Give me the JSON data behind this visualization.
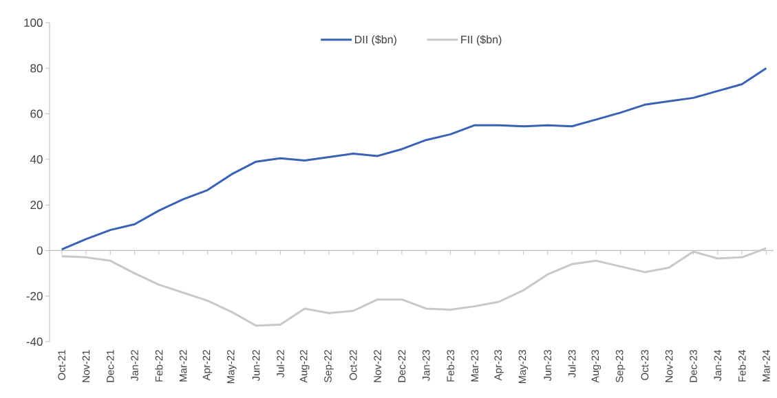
{
  "chart_data": {
    "type": "line",
    "categories": [
      "Oct-21",
      "Nov-21",
      "Dec-21",
      "Jan-22",
      "Feb-22",
      "Mar-22",
      "Apr-22",
      "May-22",
      "Jun-22",
      "Jul-22",
      "Aug-22",
      "Sep-22",
      "Oct-22",
      "Nov-22",
      "Dec-22",
      "Jan-23",
      "Feb-23",
      "Mar-23",
      "Apr-23",
      "May-23",
      "Jun-23",
      "Jul-23",
      "Aug-23",
      "Sep-23",
      "Oct-23",
      "Nov-23",
      "Dec-23",
      "Jan-24",
      "Feb-24",
      "Mar-24"
    ],
    "series": [
      {
        "name": "DII ($bn)",
        "color": "#3a62b4",
        "values": [
          0.5,
          5,
          9,
          11.5,
          17.5,
          22.5,
          26.5,
          33.5,
          39,
          40.5,
          39.5,
          41,
          42.5,
          41.5,
          44.5,
          48.5,
          51,
          55,
          55,
          54.5,
          55,
          54.5,
          57.5,
          60.5,
          64,
          65.5,
          67,
          70,
          73,
          80
        ]
      },
      {
        "name": "FII ($bn)",
        "color": "#c8c8c8",
        "values": [
          -2.5,
          -3,
          -4.5,
          -10,
          -15,
          -18.5,
          -22,
          -27,
          -33,
          -32.5,
          -25.5,
          -27.5,
          -26.5,
          -21.5,
          -21.5,
          -25.5,
          -26,
          -24.5,
          -22.5,
          -17.5,
          -10.5,
          -6,
          -4.5,
          -7,
          -9.5,
          -7.5,
          -0.5,
          -3.5,
          -3,
          1
        ]
      }
    ],
    "ylim": [
      -40,
      100
    ],
    "yticks": [
      -40,
      -20,
      0,
      20,
      40,
      60,
      80,
      100
    ],
    "legend": "top",
    "marker": "none",
    "line_style": "solid"
  }
}
